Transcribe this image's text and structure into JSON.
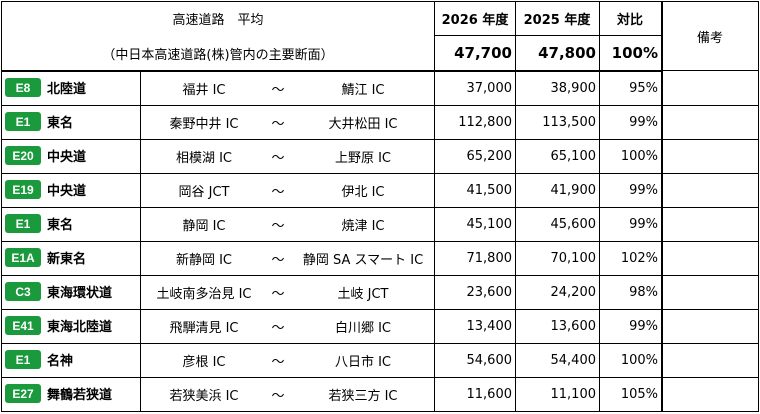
{
  "header": {
    "title": "高速道路　平均",
    "subtitle": "（中日本高速道路(株)管内の主要断面）",
    "col_2026": "2026 年度",
    "col_2025": "2025 年度",
    "col_ratio": "対比",
    "col_notes": "備考",
    "avg_2026": "47,700",
    "avg_2025": "47,800",
    "avg_ratio": "100%"
  },
  "separator": "～",
  "badge_color": "#1a9a3c",
  "rows": [
    {
      "code": "E8",
      "route": "北陸道",
      "from": "福井 IC",
      "to": "鯖江 IC",
      "v2026": "37,000",
      "v2025": "38,900",
      "ratio": "95%"
    },
    {
      "code": "E1",
      "route": "東名",
      "from": "秦野中井 IC",
      "to": "大井松田 IC",
      "v2026": "112,800",
      "v2025": "113,500",
      "ratio": "99%"
    },
    {
      "code": "E20",
      "route": "中央道",
      "from": "相模湖 IC",
      "to": "上野原 IC",
      "v2026": "65,200",
      "v2025": "65,100",
      "ratio": "100%"
    },
    {
      "code": "E19",
      "route": "中央道",
      "from": "岡谷 JCT",
      "to": "伊北 IC",
      "v2026": "41,500",
      "v2025": "41,900",
      "ratio": "99%"
    },
    {
      "code": "E1",
      "route": "東名",
      "from": "静岡 IC",
      "to": "焼津 IC",
      "v2026": "45,100",
      "v2025": "45,600",
      "ratio": "99%"
    },
    {
      "code": "E1A",
      "route": "新東名",
      "from": "新静岡 IC",
      "to": "静岡 SA スマート IC",
      "v2026": "71,800",
      "v2025": "70,100",
      "ratio": "102%"
    },
    {
      "code": "C3",
      "route": "東海環状道",
      "from": "土岐南多治見 IC",
      "to": "土岐 JCT",
      "v2026": "23,600",
      "v2025": "24,200",
      "ratio": "98%"
    },
    {
      "code": "E41",
      "route": "東海北陸道",
      "from": "飛騨清見 IC",
      "to": "白川郷 IC",
      "v2026": "13,400",
      "v2025": "13,600",
      "ratio": "99%"
    },
    {
      "code": "E1",
      "route": "名神",
      "from": "彦根 IC",
      "to": "八日市 IC",
      "v2026": "54,600",
      "v2025": "54,400",
      "ratio": "100%"
    },
    {
      "code": "E27",
      "route": "舞鶴若狭道",
      "from": "若狭美浜 IC",
      "to": "若狭三方 IC",
      "v2026": "11,600",
      "v2025": "11,100",
      "ratio": "105%"
    }
  ]
}
